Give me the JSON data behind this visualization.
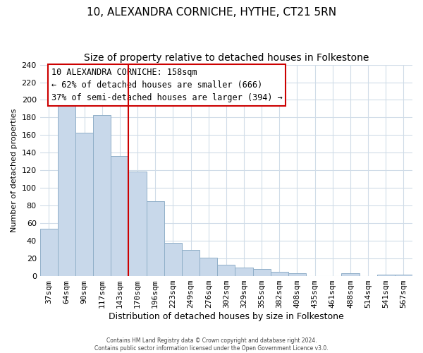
{
  "title": "10, ALEXANDRA CORNICHE, HYTHE, CT21 5RN",
  "subtitle": "Size of property relative to detached houses in Folkestone",
  "xlabel": "Distribution of detached houses by size in Folkestone",
  "ylabel": "Number of detached properties",
  "bar_labels": [
    "37sqm",
    "64sqm",
    "90sqm",
    "117sqm",
    "143sqm",
    "170sqm",
    "196sqm",
    "223sqm",
    "249sqm",
    "276sqm",
    "302sqm",
    "329sqm",
    "355sqm",
    "382sqm",
    "408sqm",
    "435sqm",
    "461sqm",
    "488sqm",
    "514sqm",
    "541sqm",
    "567sqm"
  ],
  "bar_values": [
    54,
    200,
    163,
    183,
    136,
    119,
    85,
    38,
    30,
    21,
    13,
    10,
    8,
    5,
    3,
    0,
    0,
    3,
    0,
    2,
    2
  ],
  "bar_color": "#c8d8ea",
  "bar_edge_color": "#90afc8",
  "ylim": [
    0,
    240
  ],
  "yticks": [
    0,
    20,
    40,
    60,
    80,
    100,
    120,
    140,
    160,
    180,
    200,
    220,
    240
  ],
  "property_bin_index": 5,
  "annotation_title": "10 ALEXANDRA CORNICHE: 158sqm",
  "annotation_line1": "← 62% of detached houses are smaller (666)",
  "annotation_line2": "37% of semi-detached houses are larger (394) →",
  "vline_color": "#cc0000",
  "annotation_box_color": "#ffffff",
  "annotation_box_edge": "#cc0000",
  "footer_line1": "Contains HM Land Registry data © Crown copyright and database right 2024.",
  "footer_line2": "Contains public sector information licensed under the Open Government Licence v3.0.",
  "bg_color": "#ffffff",
  "grid_color": "#d0dce8",
  "title_fontsize": 11,
  "subtitle_fontsize": 10,
  "xlabel_fontsize": 9,
  "ylabel_fontsize": 8,
  "tick_fontsize": 8,
  "ann_fontsize": 8.5
}
